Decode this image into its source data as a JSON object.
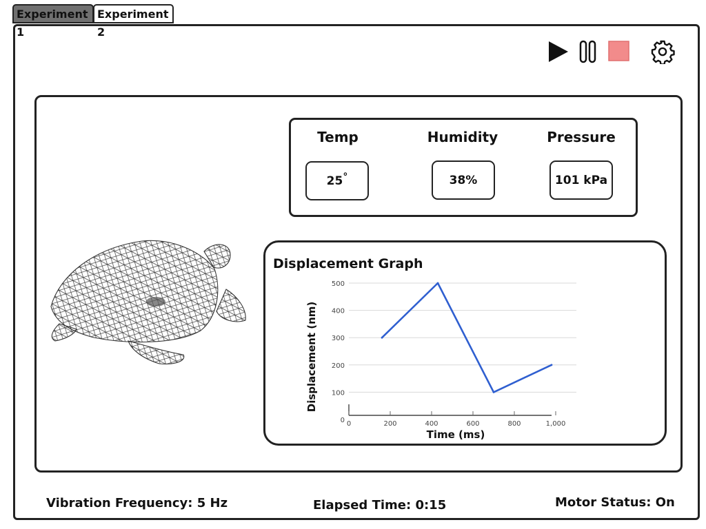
{
  "tabs": [
    {
      "label": "Experiment 1",
      "active": true
    },
    {
      "label": "Experiment 2",
      "active": false
    }
  ],
  "controls": {
    "play_icon": "play-icon",
    "pause_icon": "pause-icon",
    "stop_icon": "stop-icon",
    "settings_icon": "gear-icon",
    "stop_color": "#f28b8b"
  },
  "sensors": {
    "temp": {
      "label": "Temp",
      "value": "25",
      "unit": "°"
    },
    "humidity": {
      "label": "Humidity",
      "value": "38%"
    },
    "pressure": {
      "label": "Pressure",
      "value": "101 kPa"
    }
  },
  "graph": {
    "title": "Displacement Graph"
  },
  "chart_data": {
    "type": "line",
    "title": "Displacement Graph",
    "xlabel": "Time (ms)",
    "ylabel": "Displacement (nm)",
    "x": [
      160,
      430,
      700,
      980
    ],
    "series": [
      {
        "values": [
          300,
          500,
          100,
          200
        ],
        "color": "#2f5fd0"
      }
    ],
    "xlim": [
      0,
      1100
    ],
    "ylim": [
      0,
      500
    ],
    "x_ticks": [
      0,
      200,
      400,
      600,
      800,
      1000
    ],
    "x_tick_labels": [
      "0",
      "200",
      "400",
      "600",
      "800",
      "1,000"
    ],
    "y_ticks": [
      0,
      100,
      200,
      300,
      400,
      500
    ],
    "y_tick_labels": [
      "0",
      "100",
      "200",
      "300",
      "400",
      "500"
    ],
    "grid": true
  },
  "status": {
    "vibration": "Vibration Frequency: 5 Hz",
    "elapsed": "Elapsed Time: 0:15",
    "motor": "Motor Status: On"
  }
}
